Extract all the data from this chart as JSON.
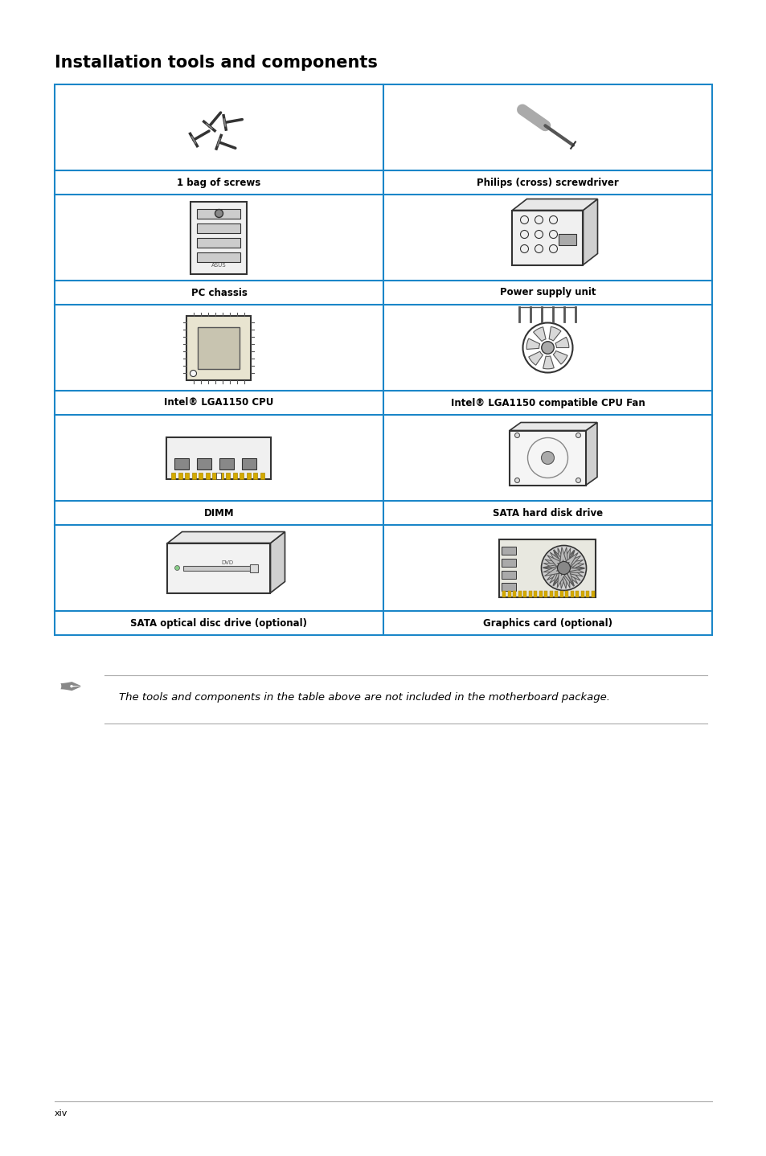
{
  "title": "Installation tools and components",
  "page_num": "xiv",
  "bg_color": "#ffffff",
  "border_color": "#1a86c8",
  "table_items": [
    {
      "label": "1 bag of screws",
      "col": 0,
      "row": 0
    },
    {
      "label": "Philips (cross) screwdriver",
      "col": 1,
      "row": 0
    },
    {
      "label": "PC chassis",
      "col": 0,
      "row": 1
    },
    {
      "label": "Power supply unit",
      "col": 1,
      "row": 1
    },
    {
      "label": "Intel® LGA1150 CPU",
      "col": 0,
      "row": 2
    },
    {
      "label": "Intel® LGA1150 compatible CPU Fan",
      "col": 1,
      "row": 2
    },
    {
      "label": "DIMM",
      "col": 0,
      "row": 3
    },
    {
      "label": "SATA hard disk drive",
      "col": 1,
      "row": 3
    },
    {
      "label": "SATA optical disc drive (optional)",
      "col": 0,
      "row": 4
    },
    {
      "label": "Graphics card (optional)",
      "col": 1,
      "row": 4
    }
  ],
  "note_text": "The tools and components in the table above are not included in the motherboard package.",
  "label_fontsize": 8.5,
  "title_fontsize": 15,
  "page_fontsize": 8
}
